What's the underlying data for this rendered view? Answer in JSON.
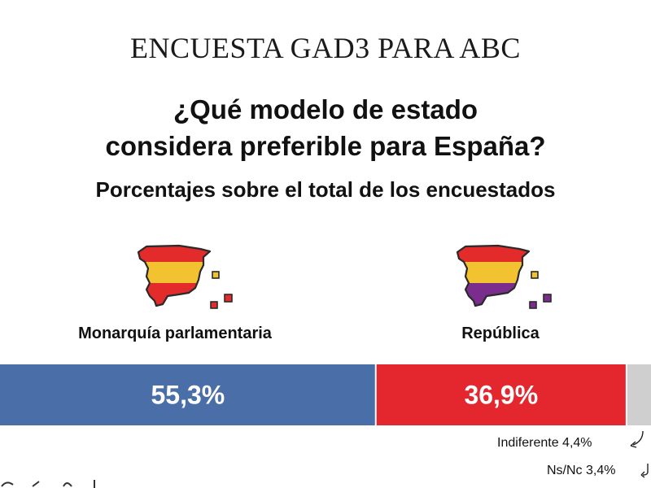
{
  "header": {
    "title": "ENCUESTA GAD3 PARA ABC"
  },
  "question": {
    "line1": "¿Qué modelo de estado",
    "line2": "considera preferible para España?"
  },
  "subtitle": "Porcentajes sobre el total de los encuestados",
  "options": [
    {
      "label": "Monarquía parlamentaria",
      "icon": "spain-map-monarchy-flag-icon",
      "flag_colors": [
        "#e32b2b",
        "#f2c230",
        "#e32b2b"
      ]
    },
    {
      "label": "República",
      "icon": "spain-map-republic-flag-icon",
      "flag_colors": [
        "#e32b2b",
        "#f2c230",
        "#7b2d8e"
      ]
    }
  ],
  "notes": {
    "indifferent": "Indiferente 4,4%",
    "nsnc": "Ns/Nc 3,4%"
  },
  "colors": {
    "monarchy": "#4a6fa8",
    "republic": "#e4262f",
    "indifferent": "#cfcfcf",
    "nsnc": "#ffffff"
  },
  "chart_data": {
    "type": "bar",
    "orientation": "horizontal-stacked",
    "categories": [
      "Monarquía parlamentaria",
      "República",
      "Indiferente",
      "Ns/Nc"
    ],
    "values": [
      55.3,
      36.9,
      4.4,
      3.4
    ],
    "value_labels": [
      "55,3%",
      "36,9%",
      "4,4%",
      "3,4%"
    ],
    "title": "¿Qué modelo de estado considera preferible para España?",
    "subtitle": "Porcentajes sobre el total de los encuestados",
    "xlim": [
      0,
      100
    ]
  }
}
